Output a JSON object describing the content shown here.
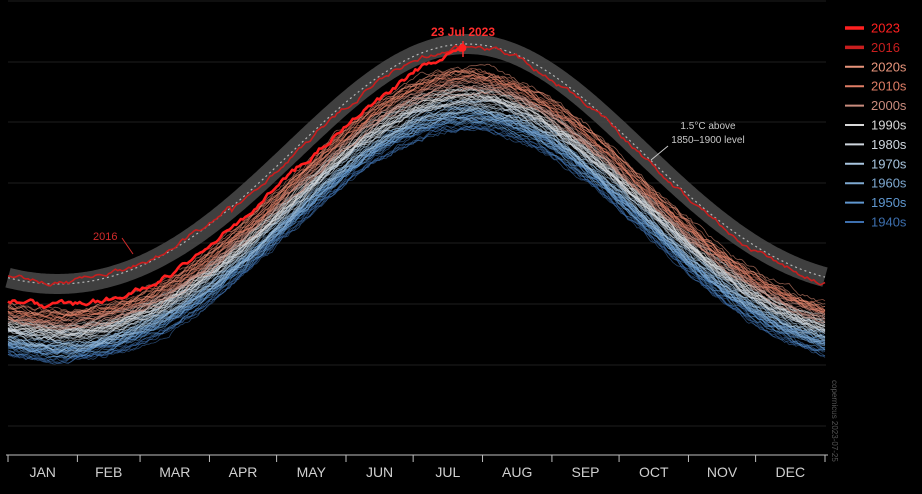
{
  "chart_data": {
    "type": "line",
    "title": "",
    "xlabel": "",
    "ylabel": "",
    "x_tick_labels": [
      "JAN",
      "FEB",
      "MAR",
      "APR",
      "MAY",
      "JUN",
      "JUL",
      "AUG",
      "SEP",
      "OCT",
      "NOV",
      "DEC"
    ],
    "grid": "horizontal",
    "legend_position": "top-right",
    "series": [
      {
        "name": "2023",
        "color": "#ff2020",
        "emphasis": "thick"
      },
      {
        "name": "2016",
        "color": "#c81e1e",
        "emphasis": "thick"
      },
      {
        "name": "2020s",
        "color": "#e9957c"
      },
      {
        "name": "2010s",
        "color": "#e07e66"
      },
      {
        "name": "2000s",
        "color": "#c98c7e"
      },
      {
        "name": "1990s",
        "color": "#d8d8d8"
      },
      {
        "name": "1980s",
        "color": "#cfd6de"
      },
      {
        "name": "1970s",
        "color": "#a9c6e0"
      },
      {
        "name": "1960s",
        "color": "#7ea9d1"
      },
      {
        "name": "1950s",
        "color": "#5f97cf"
      },
      {
        "name": "1940s",
        "color": "#3d6fae"
      }
    ],
    "annotations": {
      "peak_label": "23 Jul 2023",
      "year_2016_label": "2016",
      "threshold_label_line1": "1.5°C above",
      "threshold_label_line2": "1850–1900 level"
    },
    "credit": "copernicus 2023-07-25"
  }
}
